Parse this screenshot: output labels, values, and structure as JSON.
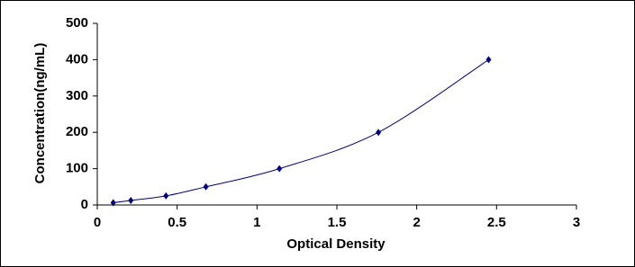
{
  "chart_data": {
    "type": "line",
    "smooth": true,
    "marker": "diamond",
    "x_label": "Optical Density",
    "y_label": "Concentration(ng/mL)",
    "x": [
      0.1,
      0.21,
      0.43,
      0.68,
      1.14,
      1.76,
      2.45
    ],
    "series": [
      {
        "color": "#000080",
        "values": [
          6.25,
          12.5,
          25,
          50,
          100,
          200,
          400
        ]
      }
    ],
    "xlim": [
      0,
      3
    ],
    "xticks": [
      0,
      0.5,
      1,
      1.5,
      2,
      2.5,
      3
    ],
    "ylim": [
      0,
      500
    ],
    "yticks": [
      0,
      100,
      200,
      300,
      400,
      500
    ],
    "grid": false
  }
}
